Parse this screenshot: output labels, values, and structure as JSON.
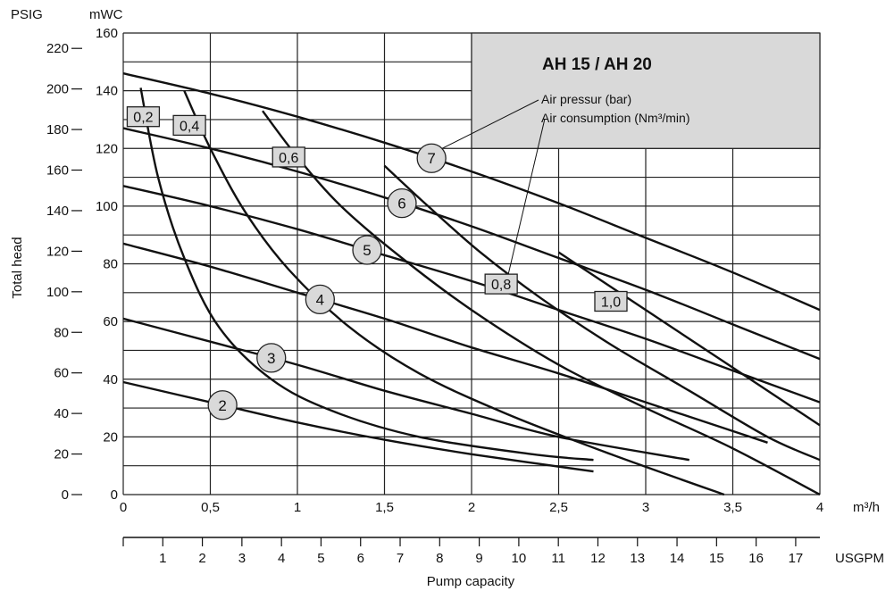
{
  "chart_data": {
    "type": "line",
    "title": "AH 15 / AH 20",
    "annotations": [
      "Air pressur (bar)",
      "Air consumption (Nm³/min)"
    ],
    "xlabel": "Pump capacity",
    "ylabel": "Total head",
    "x_unit": "m³/h",
    "x_secondary_unit": "USGPM",
    "y_unit": "mWC",
    "y_secondary_unit": "PSIG",
    "xlim": [
      0,
      4
    ],
    "ylim": [
      0,
      160
    ],
    "x_ticks": [
      0,
      0.5,
      1,
      1.5,
      2,
      2.5,
      3,
      3.5,
      4
    ],
    "x_tick_labels": [
      "0",
      "0,5",
      "1",
      "1,5",
      "2",
      "2,5",
      "3",
      "3,5",
      "4"
    ],
    "usgpm_ticks": [
      1,
      2,
      3,
      4,
      5,
      6,
      7,
      8,
      9,
      10,
      11,
      12,
      13,
      14,
      15,
      16,
      17
    ],
    "y_ticks": [
      0,
      20,
      40,
      60,
      80,
      100,
      120,
      140,
      160
    ],
    "psig_ticks": [
      0,
      20,
      40,
      60,
      80,
      100,
      120,
      140,
      160,
      180,
      200,
      220
    ],
    "grid": true,
    "pressure_series": [
      {
        "name": "2",
        "points": [
          [
            0,
            39
          ],
          [
            0.5,
            32
          ],
          [
            1,
            25
          ],
          [
            1.5,
            19
          ],
          [
            2,
            14
          ],
          [
            2.7,
            8
          ]
        ]
      },
      {
        "name": "3",
        "points": [
          [
            0,
            61
          ],
          [
            0.5,
            53
          ],
          [
            1,
            45
          ],
          [
            1.5,
            36
          ],
          [
            2,
            28
          ],
          [
            2.5,
            20
          ],
          [
            3.25,
            12
          ]
        ]
      },
      {
        "name": "4",
        "points": [
          [
            0,
            87
          ],
          [
            0.5,
            79
          ],
          [
            1,
            70
          ],
          [
            1.5,
            61
          ],
          [
            2,
            51
          ],
          [
            2.5,
            42
          ],
          [
            3,
            32
          ],
          [
            3.5,
            22
          ],
          [
            3.7,
            18
          ]
        ]
      },
      {
        "name": "5",
        "points": [
          [
            0,
            107
          ],
          [
            0.5,
            100
          ],
          [
            1,
            92
          ],
          [
            1.5,
            83
          ],
          [
            2,
            74
          ],
          [
            2.5,
            64
          ],
          [
            3,
            54
          ],
          [
            3.5,
            43
          ],
          [
            4,
            32
          ]
        ]
      },
      {
        "name": "6",
        "points": [
          [
            0,
            127
          ],
          [
            0.5,
            120
          ],
          [
            1,
            112
          ],
          [
            1.5,
            103
          ],
          [
            2,
            93
          ],
          [
            2.5,
            82
          ],
          [
            3,
            71
          ],
          [
            3.5,
            59
          ],
          [
            4,
            47
          ]
        ]
      },
      {
        "name": "7",
        "points": [
          [
            0,
            146
          ],
          [
            0.5,
            139
          ],
          [
            1,
            131
          ],
          [
            1.5,
            122
          ],
          [
            2,
            112
          ],
          [
            2.5,
            101
          ],
          [
            3,
            89
          ],
          [
            3.5,
            77
          ],
          [
            4,
            64
          ]
        ]
      }
    ],
    "consumption_series": [
      {
        "name": "0,2",
        "points": [
          [
            0.1,
            141
          ],
          [
            0.2,
            110
          ],
          [
            0.35,
            82
          ],
          [
            0.55,
            58
          ],
          [
            0.85,
            40
          ],
          [
            1.2,
            29
          ],
          [
            1.7,
            20
          ],
          [
            2.35,
            14
          ],
          [
            2.7,
            12
          ]
        ]
      },
      {
        "name": "0,4",
        "points": [
          [
            0.35,
            140
          ],
          [
            0.5,
            120
          ],
          [
            0.7,
            98
          ],
          [
            0.95,
            78
          ],
          [
            1.3,
            58
          ],
          [
            1.7,
            42
          ],
          [
            2.2,
            28
          ],
          [
            2.8,
            14
          ],
          [
            3.45,
            0
          ]
        ]
      },
      {
        "name": "0,6",
        "points": [
          [
            0.8,
            133
          ],
          [
            1,
            117
          ],
          [
            1.25,
            100
          ],
          [
            1.6,
            82
          ],
          [
            2,
            64
          ],
          [
            2.5,
            45
          ],
          [
            3,
            30
          ],
          [
            3.5,
            16
          ],
          [
            4,
            0
          ]
        ]
      },
      {
        "name": "0,8",
        "points": [
          [
            1.5,
            114
          ],
          [
            1.75,
            100
          ],
          [
            2.05,
            84
          ],
          [
            2.4,
            68
          ],
          [
            2.8,
            52
          ],
          [
            3.25,
            36
          ],
          [
            3.7,
            20
          ],
          [
            4,
            12
          ]
        ]
      },
      {
        "name": "1,0",
        "points": [
          [
            2.5,
            84
          ],
          [
            2.8,
            72
          ],
          [
            3.15,
            58
          ],
          [
            3.5,
            44
          ],
          [
            3.8,
            32
          ],
          [
            4,
            24
          ]
        ]
      }
    ]
  }
}
